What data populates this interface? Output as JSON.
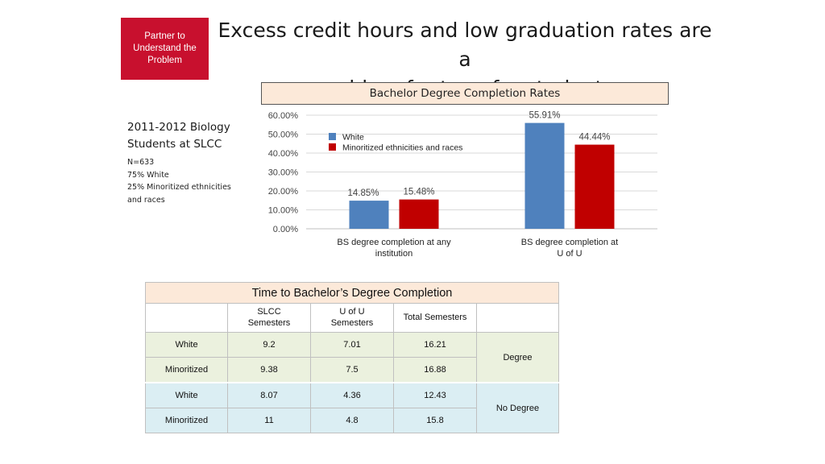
{
  "badge": {
    "line1": "Partner to",
    "line2": "Understand the",
    "line3": "Problem"
  },
  "title": {
    "line1": "Excess credit hours and low graduation rates are a",
    "line2": "problem for transfer students"
  },
  "sidebar": {
    "heading_line1": "2011-2012 Biology",
    "heading_line2": "Students at SLCC",
    "n": "N=633",
    "white_pct": "75% White",
    "minoritized_line1": "25% Minoritized ethnicities",
    "minoritized_line2": "and races"
  },
  "chart_data": {
    "type": "bar",
    "title": "Bachelor Degree Completion Rates",
    "categories": [
      [
        "BS degree completion at any",
        "institution"
      ],
      [
        "BS degree completion at",
        "U of U"
      ]
    ],
    "series": [
      {
        "name": "White",
        "color": "#4f81bd",
        "values": [
          14.85,
          55.91
        ],
        "labels": [
          "14.85%",
          "55.91%"
        ]
      },
      {
        "name": "Minoritized ethnicities and races",
        "color": "#c00000",
        "values": [
          15.48,
          44.44
        ],
        "labels": [
          "15.48%",
          "44.44%"
        ]
      }
    ],
    "ylim": [
      0,
      60
    ],
    "yticks": [
      0,
      10,
      20,
      30,
      40,
      50,
      60
    ],
    "ytick_labels": [
      "0.00%",
      "10.00%",
      "20.00%",
      "30.00%",
      "40.00%",
      "50.00%",
      "60.00%"
    ],
    "legend": "top-left",
    "grid": true
  },
  "table": {
    "title": "Time to Bachelor’s Degree Completion",
    "columns": [
      {
        "line1": "",
        "line2": ""
      },
      {
        "line1": "SLCC",
        "line2": "Semesters"
      },
      {
        "line1": "U of U",
        "line2": "Semesters"
      },
      {
        "line1": "Total Semesters",
        "line2": ""
      },
      {
        "line1": "",
        "line2": ""
      }
    ],
    "groups": [
      {
        "label": "Degree",
        "rows": [
          {
            "group": "White",
            "slcc": "9.2",
            "uofu": "7.01",
            "total": "16.21"
          },
          {
            "group": "Minoritized",
            "slcc": "9.38",
            "uofu": "7.5",
            "total": "16.88"
          }
        ]
      },
      {
        "label": "No Degree",
        "rows": [
          {
            "group": "White",
            "slcc": "8.07",
            "uofu": "4.36",
            "total": "12.43"
          },
          {
            "group": "Minoritized",
            "slcc": "11",
            "uofu": "4.8",
            "total": "15.8"
          }
        ]
      }
    ]
  }
}
